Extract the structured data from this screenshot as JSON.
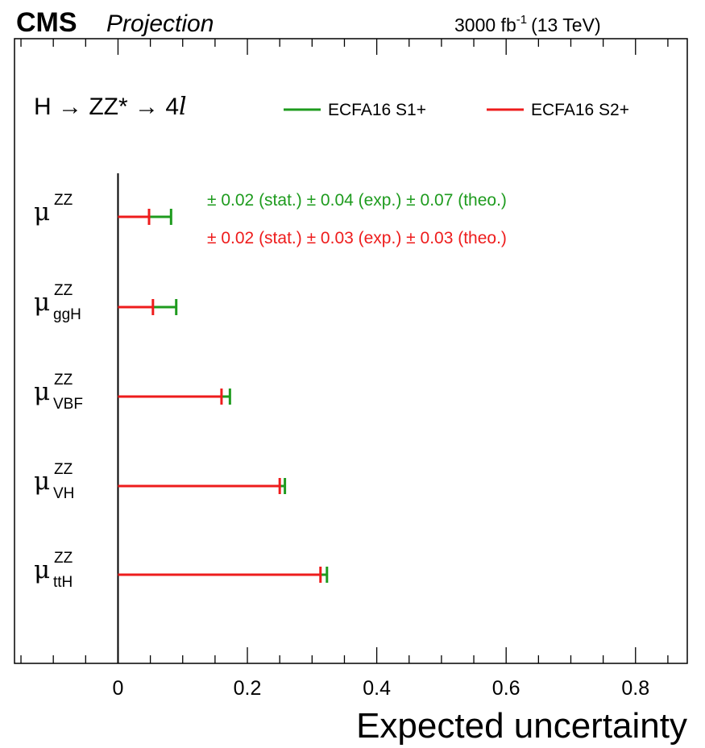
{
  "header": {
    "experiment": "CMS",
    "label": "Projection",
    "lumi_value": "3000 fb",
    "lumi_exp": "-1",
    "energy": "(13 TeV)"
  },
  "process": {
    "prefix": "H → ZZ* → 4",
    "lepton": "l"
  },
  "legend": [
    {
      "label": "ECFA16 S1+",
      "color": "#1e9b1e"
    },
    {
      "label": "ECFA16 S2+",
      "color": "#ee1c1c"
    }
  ],
  "annotations": [
    {
      "text": "± 0.02 (stat.) ± 0.04 (exp.) ± 0.07 (theo.)",
      "color": "#1e9b1e"
    },
    {
      "text": "± 0.02 (stat.) ± 0.03 (exp.) ± 0.03 (theo.)",
      "color": "#ee1c1c"
    }
  ],
  "chart_data": {
    "type": "bar",
    "orientation": "horizontal",
    "xlabel": "Expected uncertainty",
    "xlim": [
      -0.16,
      0.88
    ],
    "x_ticks": [
      0,
      0.2,
      0.4,
      0.6,
      0.8
    ],
    "x_tick_labels": [
      "0",
      "0.2",
      "0.4",
      "0.6",
      "0.8"
    ],
    "categories": [
      {
        "symbol": "μ",
        "sup": "ZZ",
        "sub": ""
      },
      {
        "symbol": "μ",
        "sup": "ZZ",
        "sub": "ggH"
      },
      {
        "symbol": "μ",
        "sup": "ZZ",
        "sub": "VBF"
      },
      {
        "symbol": "μ",
        "sup": "ZZ",
        "sub": "VH"
      },
      {
        "symbol": "μ",
        "sup": "ZZ",
        "sub": "ttH"
      }
    ],
    "series": [
      {
        "name": "ECFA16 S1+",
        "color": "#1e9b1e",
        "values": [
          0.082,
          0.09,
          0.173,
          0.258,
          0.323
        ]
      },
      {
        "name": "ECFA16 S2+",
        "color": "#ee1c1c",
        "values": [
          0.048,
          0.054,
          0.16,
          0.25,
          0.313
        ]
      }
    ],
    "legend_position": "top-right",
    "grid": false
  }
}
